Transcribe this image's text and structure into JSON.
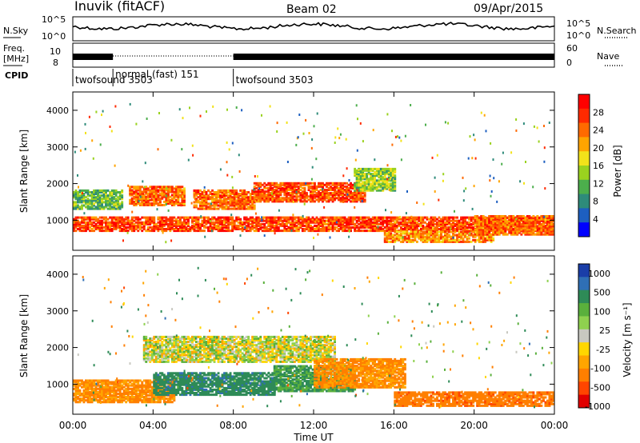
{
  "header": {
    "station": "Inuvik (fitACF)",
    "beam": "Beam 02",
    "date": "09/Apr/2015"
  },
  "panels": {
    "nsky": {
      "label": "N.Sky",
      "ticks_left": [
        "10^5",
        "10^0"
      ],
      "ticks_right": [
        "10^5",
        "10^0"
      ],
      "right_label": "N.Search"
    },
    "freq": {
      "label_line1": "Freq.",
      "label_line2": "[MHz]",
      "ticks_left": [
        "10",
        "8"
      ],
      "ticks_right": [
        "60",
        "0"
      ],
      "right_label": "Nave"
    },
    "cpid": {
      "label": "CPID",
      "segments": [
        {
          "name": "twofsound 3503",
          "start_hour": 0,
          "end_hour": 2
        },
        {
          "name": "normal (fast) 151",
          "start_hour": 2,
          "end_hour": 8
        },
        {
          "name": "twofsound 3503",
          "start_hour": 8,
          "end_hour": 24
        }
      ]
    }
  },
  "axes": {
    "ylabel": "Slant Range [km]",
    "xlabel": "Time UT",
    "y_ticks": [
      "1000",
      "2000",
      "3000",
      "4000"
    ],
    "x_ticks": [
      "00:00",
      "04:00",
      "08:00",
      "12:00",
      "16:00",
      "20:00",
      "00:00"
    ]
  },
  "colorbars": {
    "power": {
      "label": "Power [dB]",
      "ticks": [
        "4",
        "8",
        "12",
        "16",
        "20",
        "24",
        "28"
      ],
      "colors": [
        "#0000ff",
        "#1d5fc0",
        "#2e8b7a",
        "#4cae4c",
        "#9ad21f",
        "#f2e21a",
        "#ffa400",
        "#ff6a00",
        "#ff2a00",
        "#ff0000"
      ]
    },
    "velocity": {
      "label": "Velocity [m s⁻¹]",
      "ticks": [
        "1000",
        "500",
        "100",
        "25",
        "-25",
        "-100",
        "-500",
        "-1000"
      ],
      "colors": [
        "#1a3ea8",
        "#2f6fb5",
        "#2e8b57",
        "#5ab03c",
        "#8fd14f",
        "#c8c8c0",
        "#ffd700",
        "#ffa500",
        "#ff7f00",
        "#ff4500",
        "#e00000"
      ]
    }
  },
  "chart_data": {
    "type": "heatmap",
    "title": "Inuvik (fitACF) Beam 02 09/Apr/2015",
    "xlabel": "Time UT",
    "ylabel": "Slant Range [km]",
    "xlim_hours": [
      0,
      24
    ],
    "ylim_km": [
      180,
      4500
    ],
    "power_bands": [
      {
        "range_km": [
          700,
          1100
        ],
        "start_hour": 0,
        "end_hour": 24,
        "level_db": 26
      },
      {
        "range_km": [
          1300,
          1800
        ],
        "start_hour": 0,
        "end_hour": 2.5,
        "level_db": 12
      },
      {
        "range_km": [
          1400,
          1900
        ],
        "start_hour": 2.8,
        "end_hour": 5.5,
        "level_db": 24
      },
      {
        "range_km": [
          1300,
          1800
        ],
        "start_hour": 6.0,
        "end_hour": 9.0,
        "level_db": 24
      },
      {
        "range_km": [
          1500,
          2000
        ],
        "start_hour": 9.0,
        "end_hour": 14.5,
        "level_db": 26
      },
      {
        "range_km": [
          1800,
          2400
        ],
        "start_hour": 14.0,
        "end_hour": 16.0,
        "level_db": 14
      },
      {
        "range_km": [
          400,
          700
        ],
        "start_hour": 15.5,
        "end_hour": 21.0,
        "level_db": 22
      },
      {
        "range_km": [
          600,
          1100
        ],
        "start_hour": 20.0,
        "end_hour": 24.0,
        "level_db": 24
      }
    ],
    "velocity_bands": [
      {
        "range_km": [
          500,
          1100
        ],
        "start_hour": 0,
        "end_hour": 5.0,
        "velocity": -200
      },
      {
        "range_km": [
          700,
          1300
        ],
        "start_hour": 4.0,
        "end_hour": 10.0,
        "velocity": 300
      },
      {
        "range_km": [
          1600,
          2300
        ],
        "start_hour": 3.5,
        "end_hour": 13.0,
        "velocity": 0
      },
      {
        "range_km": [
          800,
          1500
        ],
        "start_hour": 10.0,
        "end_hour": 14.0,
        "velocity": 200
      },
      {
        "range_km": [
          900,
          1700
        ],
        "start_hour": 12.0,
        "end_hour": 16.5,
        "velocity": -200
      },
      {
        "range_km": [
          400,
          800
        ],
        "start_hour": 16.0,
        "end_hour": 24.0,
        "velocity": -300
      }
    ]
  }
}
